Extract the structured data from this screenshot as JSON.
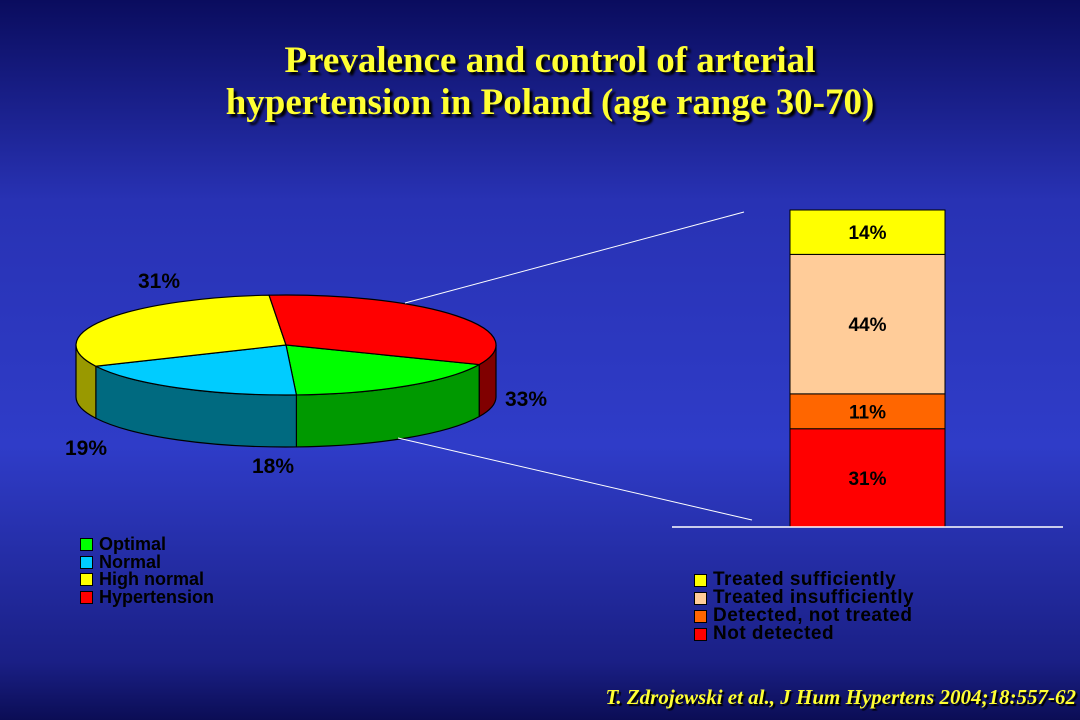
{
  "title": {
    "line1": "Prevalence and control of arterial",
    "line2": "hypertension in Poland (age range 30-70)"
  },
  "chart_data": [
    {
      "type": "pie",
      "slices": [
        {
          "name": "Optimal",
          "value": 18,
          "label": "18%",
          "color": "#00ff00",
          "side_color": "#009900"
        },
        {
          "name": "Normal",
          "value": 19,
          "label": "19%",
          "color": "#00ccff",
          "side_color": "#006a80"
        },
        {
          "name": "High normal",
          "value": 31,
          "label": "31%",
          "color": "#ffff00",
          "side_color": "#999900"
        },
        {
          "name": "Hypertension",
          "value": 33,
          "label": "33%",
          "color": "#ff0000",
          "side_color": "#800000"
        }
      ],
      "legend": [
        "Optimal",
        "Normal",
        "High normal",
        "Hypertension"
      ],
      "legend_placement": "bottom-left"
    },
    {
      "type": "bar",
      "stacked": true,
      "segments": [
        {
          "name": "Not detected",
          "value": 31,
          "label": "31%",
          "color": "#ff0000"
        },
        {
          "name": "Detected, not treated",
          "value": 11,
          "label": "11%",
          "color": "#ff6600"
        },
        {
          "name": "Treated insufficiently",
          "value": 44,
          "label": "44%",
          "color": "#ffcc99"
        },
        {
          "name": "Treated sufficiently",
          "value": 14,
          "label": "14%",
          "color": "#ffff00"
        }
      ],
      "legend": [
        "Treated sufficiently",
        "Treated insufficiently",
        "Detected, not treated",
        "Not detected"
      ],
      "legend_placement": "bottom"
    }
  ],
  "citation": "T. Zdrojewski et al., J Hum Hypertens 2004;18:557-62"
}
